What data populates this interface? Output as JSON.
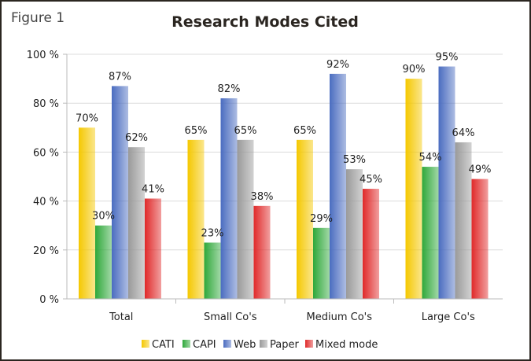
{
  "figure_label": "Figure 1",
  "chart_data": {
    "type": "bar",
    "title": "Research Modes Cited",
    "xlabel": "",
    "ylabel": "",
    "ylim": [
      0,
      100
    ],
    "yticks": [
      0,
      20,
      40,
      60,
      80,
      100
    ],
    "ytick_labels": [
      "0 %",
      "20 %",
      "40 %",
      "60 %",
      "80 %",
      "100 %"
    ],
    "grid": true,
    "legend_position": "bottom",
    "categories": [
      "Total",
      "Small Co's",
      "Medium Co's",
      "Large Co's"
    ],
    "series": [
      {
        "name": "CATI",
        "color": "#f5c800",
        "values": [
          70,
          65,
          65,
          90
        ],
        "labels": [
          "70%",
          "65%",
          "65%",
          "90%"
        ]
      },
      {
        "name": "CAPI",
        "color": "#2fa83a",
        "values": [
          30,
          23,
          29,
          54
        ],
        "labels": [
          "30%",
          "23%",
          "29%",
          "54%"
        ]
      },
      {
        "name": "Web",
        "color": "#4a6cc0",
        "values": [
          87,
          82,
          92,
          95
        ],
        "labels": [
          "87%",
          "82%",
          "92%",
          "95%"
        ]
      },
      {
        "name": "Paper",
        "color": "#9a9a9a",
        "values": [
          62,
          65,
          53,
          64
        ],
        "labels": [
          "62%",
          "65%",
          "53%",
          "64%"
        ]
      },
      {
        "name": "Mixed mode",
        "color": "#e02a2a",
        "values": [
          41,
          38,
          45,
          49
        ],
        "labels": [
          "41%",
          "38%",
          "45%",
          "49%"
        ]
      }
    ]
  }
}
